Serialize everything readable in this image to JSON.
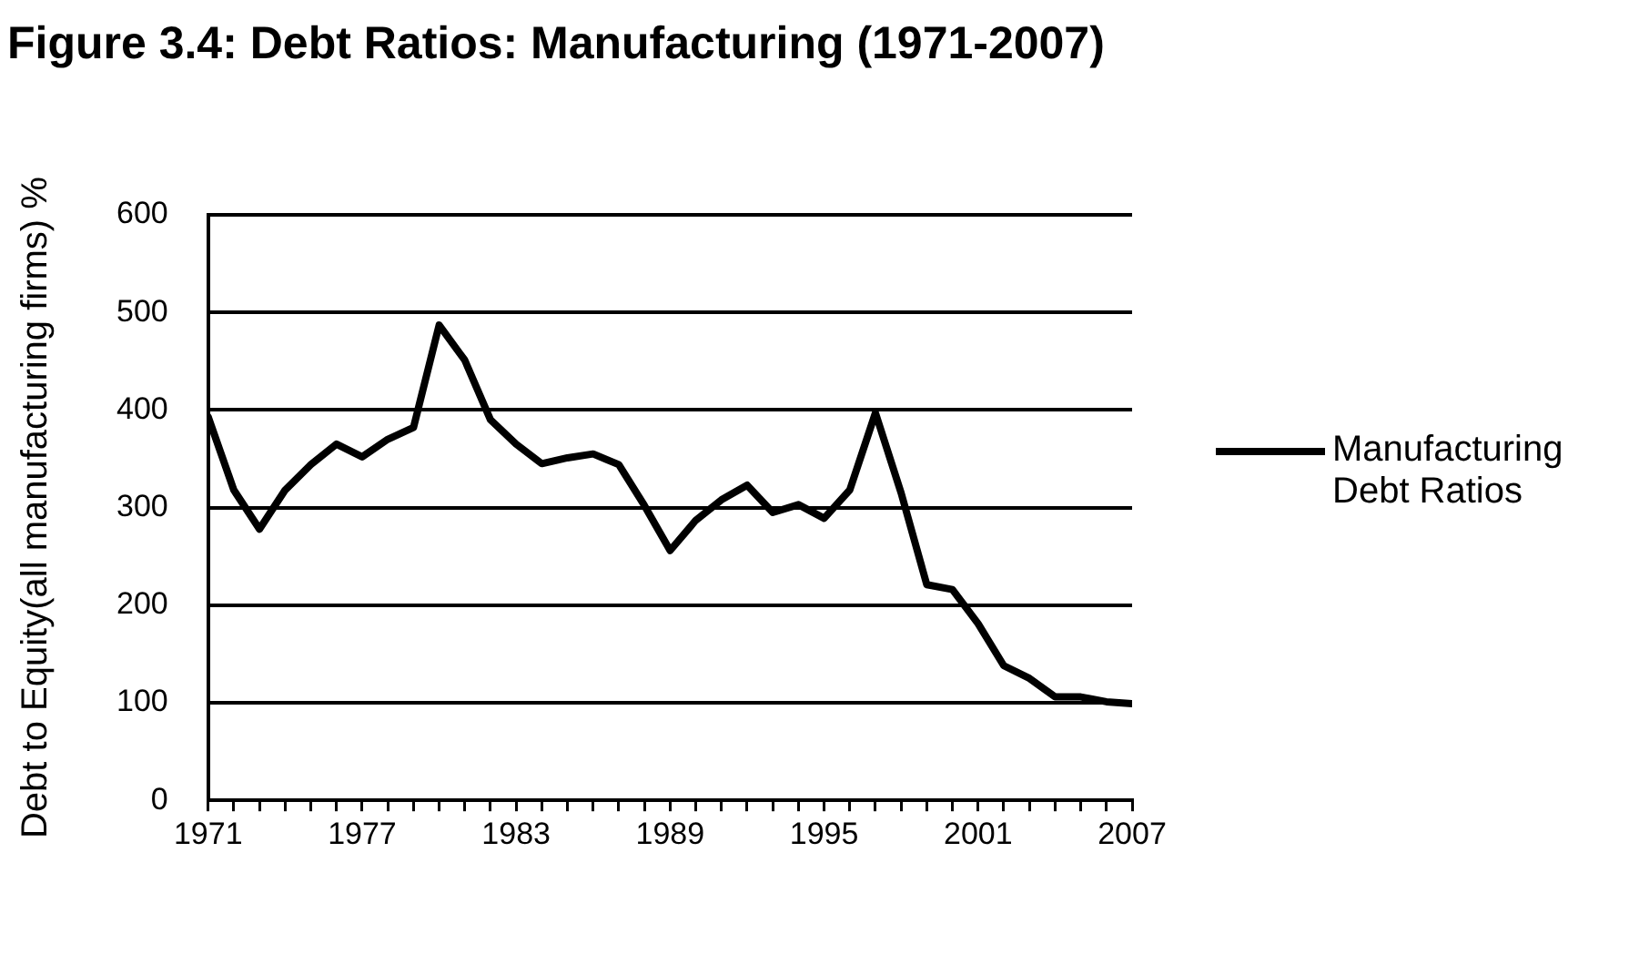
{
  "chart_data": {
    "type": "line",
    "title": "Figure 3.4: Debt Ratios: Manufacturing (1971-2007)",
    "ylabel": "Debt to Equity(all manufacturing firms) %",
    "x": [
      1971,
      1972,
      1973,
      1974,
      1975,
      1976,
      1977,
      1978,
      1979,
      1980,
      1981,
      1982,
      1983,
      1984,
      1985,
      1986,
      1987,
      1988,
      1989,
      1990,
      1991,
      1992,
      1993,
      1994,
      1995,
      1996,
      1997,
      1998,
      1999,
      2000,
      2001,
      2002,
      2003,
      2004,
      2005,
      2006,
      2007
    ],
    "series": [
      {
        "name": "Manufacturing Debt Ratios",
        "color": "#000000",
        "values": [
          393,
          318,
          278,
          318,
          344,
          365,
          352,
          370,
          382,
          487,
          451,
          390,
          365,
          345,
          351,
          355,
          344,
          302,
          256,
          287,
          308,
          323,
          295,
          303,
          289,
          318,
          397,
          315,
          221,
          216,
          181,
          138,
          125,
          106,
          106,
          101,
          99
        ]
      }
    ],
    "xlim": [
      1971,
      2007
    ],
    "xticks": [
      1971,
      {
        "value": 1972,
        "label": null
      },
      {
        "value": 1973,
        "label": null
      },
      {
        "value": 1974,
        "label": null
      },
      {
        "value": 1975,
        "label": null
      },
      {
        "value": 1976,
        "label": null
      },
      1977,
      {
        "value": 1978,
        "label": null
      },
      {
        "value": 1979,
        "label": null
      },
      {
        "value": 1980,
        "label": null
      },
      {
        "value": 1981,
        "label": null
      },
      {
        "value": 1982,
        "label": null
      },
      1983,
      {
        "value": 1984,
        "label": null
      },
      {
        "value": 1985,
        "label": null
      },
      {
        "value": 1986,
        "label": null
      },
      {
        "value": 1987,
        "label": null
      },
      {
        "value": 1988,
        "label": null
      },
      1989,
      {
        "value": 1990,
        "label": null
      },
      {
        "value": 1991,
        "label": null
      },
      {
        "value": 1992,
        "label": null
      },
      {
        "value": 1993,
        "label": null
      },
      {
        "value": 1994,
        "label": null
      },
      1995,
      {
        "value": 1996,
        "label": null
      },
      {
        "value": 1997,
        "label": null
      },
      {
        "value": 1998,
        "label": null
      },
      {
        "value": 1999,
        "label": null
      },
      {
        "value": 2000,
        "label": null
      },
      2001,
      {
        "value": 2002,
        "label": null
      },
      {
        "value": 2003,
        "label": null
      },
      {
        "value": 2004,
        "label": null
      },
      {
        "value": 2005,
        "label": null
      },
      {
        "value": 2006,
        "label": null
      },
      2007
    ],
    "ylim": [
      0,
      600
    ],
    "yticks": [
      0,
      100,
      200,
      300,
      400,
      500,
      600
    ],
    "grid": "y",
    "legend": "right",
    "marker": "none",
    "line_style": "solid"
  }
}
